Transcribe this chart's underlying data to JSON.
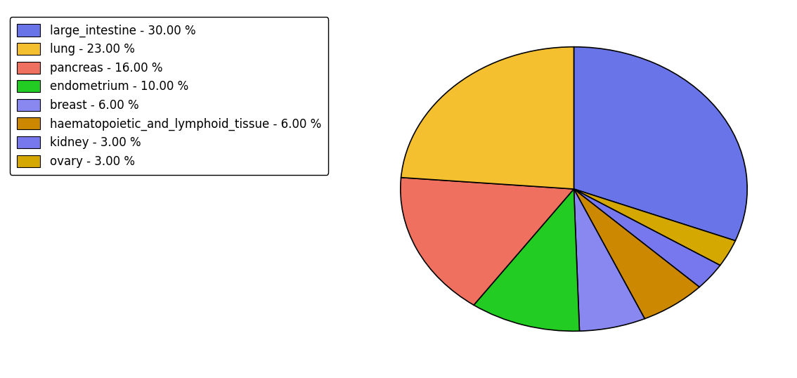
{
  "labels": [
    "large_intestine",
    "ovary",
    "kidney",
    "haematopoietic_and_lymphoid_tissue",
    "breast",
    "endometrium",
    "pancreas",
    "lung"
  ],
  "values": [
    30.0,
    3.0,
    3.0,
    6.0,
    6.0,
    10.0,
    16.0,
    23.0
  ],
  "colors": [
    "#6874e8",
    "#d4a800",
    "#7878ee",
    "#cc8800",
    "#8888f0",
    "#22cc22",
    "#f07060",
    "#f5c030"
  ],
  "legend_order_labels": [
    "large_intestine - 30.00 %",
    "lung - 23.00 %",
    "pancreas - 16.00 %",
    "endometrium - 10.00 %",
    "breast - 6.00 %",
    "haematopoietic_and_lymphoid_tissue - 6.00 %",
    "kidney - 3.00 %",
    "ovary - 3.00 %"
  ],
  "legend_colors": [
    "#6874e8",
    "#f5c030",
    "#f07060",
    "#22cc22",
    "#8888f0",
    "#cc8800",
    "#7878ee",
    "#d4a800"
  ],
  "startangle": 90,
  "figsize": [
    11.34,
    5.38
  ],
  "dpi": 100
}
